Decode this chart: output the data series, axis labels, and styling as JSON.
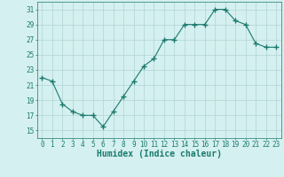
{
  "x": [
    0,
    1,
    2,
    3,
    4,
    5,
    6,
    7,
    8,
    9,
    10,
    11,
    12,
    13,
    14,
    15,
    16,
    17,
    18,
    19,
    20,
    21,
    22,
    23
  ],
  "y": [
    22.0,
    21.5,
    18.5,
    17.5,
    17.0,
    17.0,
    15.5,
    17.5,
    19.5,
    21.5,
    23.5,
    24.5,
    27.0,
    27.0,
    29.0,
    29.0,
    29.0,
    31.0,
    31.0,
    29.5,
    29.0,
    26.5,
    26.0,
    26.0
  ],
  "line_color": "#1a7a6e",
  "marker": "+",
  "marker_size": 4,
  "bg_color": "#d5f0f0",
  "grid_color": "#b0d4d4",
  "tick_color": "#1a7a6e",
  "xlabel": "Humidex (Indice chaleur)",
  "xlabel_fontsize": 7,
  "ylim": [
    14,
    32
  ],
  "yticks": [
    15,
    17,
    19,
    21,
    23,
    25,
    27,
    29,
    31
  ],
  "xticks": [
    0,
    1,
    2,
    3,
    4,
    5,
    6,
    7,
    8,
    9,
    10,
    11,
    12,
    13,
    14,
    15,
    16,
    17,
    18,
    19,
    20,
    21,
    22,
    23
  ],
  "tick_fontsize": 5.5
}
